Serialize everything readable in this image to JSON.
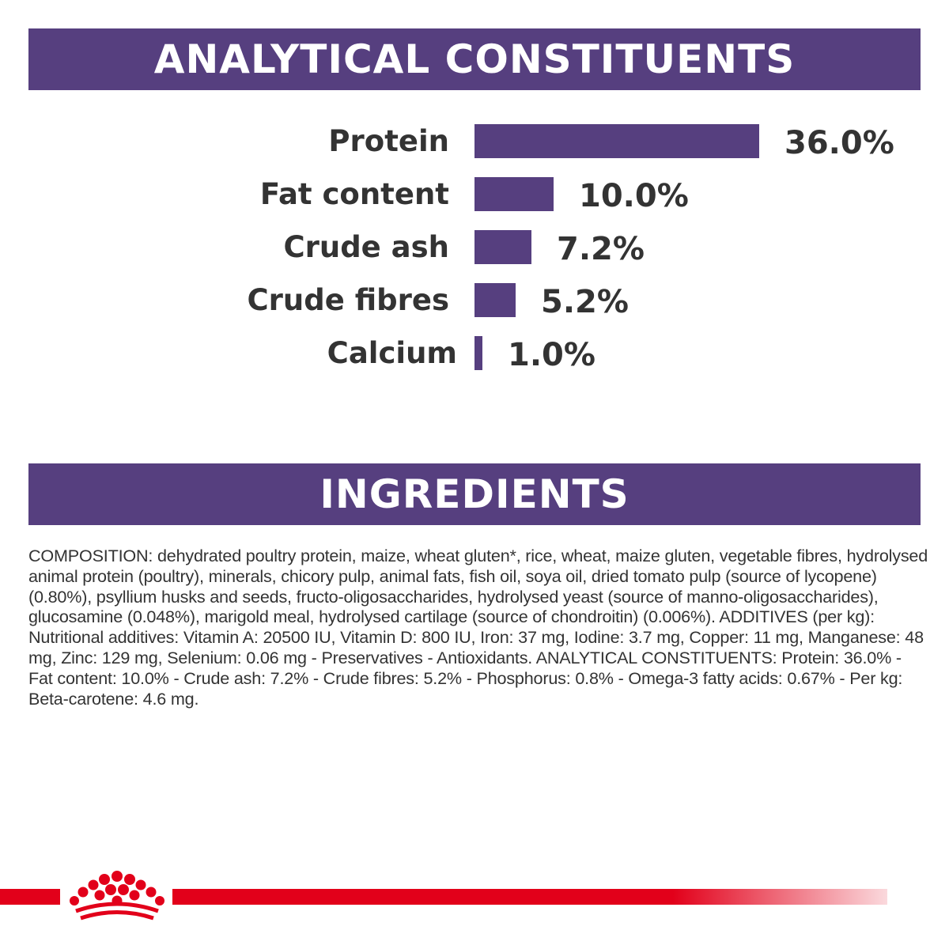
{
  "sections": {
    "analytical_title": "ANALYTICAL CONSTITUENTS",
    "ingredients_title": "INGREDIENTS"
  },
  "chart_data": {
    "type": "bar",
    "orientation": "horizontal",
    "title": "ANALYTICAL CONSTITUENTS",
    "categories": [
      "Protein",
      "Fat content",
      "Crude ash",
      "Crude fibres",
      "Calcium"
    ],
    "values": [
      36.0,
      10.0,
      7.2,
      5.2,
      1.0
    ],
    "value_labels": [
      "36.0%",
      "10.0%",
      "7.2%",
      "5.2%",
      "1.0%"
    ],
    "unit": "%",
    "bar_color": "#563f7f",
    "grid": false
  },
  "ingredients": {
    "text": "COMPOSITION: dehydrated poultry protein, maize, wheat gluten*, rice, wheat, maize gluten, vegetable fibres, hydrolysed animal protein (poultry), minerals, chicory pulp, animal fats, fish oil, soya oil, dried tomato pulp (source of lycopene) (0.80%), psyllium husks and seeds, fructo-oligosaccharides, hydrolysed yeast (source of manno-oligosaccharides), glucosamine (0.048%), marigold meal, hydrolysed cartilage (source of chondroitin) (0.006%). ADDITIVES (per kg): Nutritional additives: Vitamin A: 20500 IU, Vitamin D: 800 IU, Iron: 37 mg, Iodine: 3.7 mg, Copper: 11 mg, Manganese: 48 mg, Zinc: 129 mg, Selenium: 0.06 mg - Preservatives - Antioxidants. ANALYTICAL CONSTITUENTS: Protein: 36.0% - Fat content: 10.0% - Crude ash: 7.2% - Crude fibres: 5.2% - Phosphorus: 0.8% - Omega-3 fatty acids: 0.67% - Per kg: Beta-carotene: 4.6 mg."
  },
  "colors": {
    "banner": "#563f7f",
    "brand_red": "#e2001a",
    "text": "#333333"
  },
  "footer": {
    "logo_icon": "crown-icon"
  }
}
